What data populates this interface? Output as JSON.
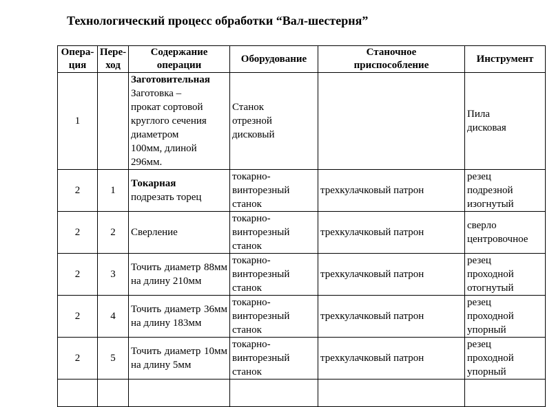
{
  "title": "Технологический процесс обработки “Вал-шестерня”",
  "headers": {
    "operation": "Опера-\nция",
    "step": "Пере-\nход",
    "content": "Содержание\nоперации",
    "equipment": "Оборудование",
    "fixture": "Станочное\nприспособление",
    "tool": "Инструмент"
  },
  "rows": [
    {
      "operation": "1",
      "step": "",
      "content_title": "Заготовительная",
      "content": "Заготовка –\nпрокат сортовой\nкруглого сечения\nдиаметром\n100мм, длиной\n296мм.",
      "equipment": "Станок\nотрезной\nдисковый",
      "fixture": "",
      "tool": "Пила\nдисковая"
    },
    {
      "operation": "2",
      "step": "1",
      "content_title": "Токарная",
      "content": "подрезать торец",
      "equipment": "токарно-\nвинторезный\nстанок",
      "fixture": "трехкулачковый патрон",
      "tool": "резец\nподрезной\nизогнутый"
    },
    {
      "operation": "2",
      "step": "2",
      "content_title": "",
      "content": "Сверление",
      "equipment": "токарно-\nвинторезный\nстанок",
      "fixture": "трехкулачковый патрон",
      "tool": "сверло\nцентровочное"
    },
    {
      "operation": "2",
      "step": "3",
      "content_title": "",
      "content": "Точить диаметр 88мм на длину 210мм",
      "equipment": "токарно-\nвинторезный\nстанок",
      "fixture": "трехкулачковый патрон",
      "tool": "резец\nпроходной\nотогнутый"
    },
    {
      "operation": "2",
      "step": "4",
      "content_title": "",
      "content": "Точить диаметр 36мм на длину 183мм",
      "equipment": "токарно-\nвинторезный\nстанок",
      "fixture": "трехкулачковый патрон",
      "tool": "резец\nпроходной\nупорный"
    },
    {
      "operation": "2",
      "step": "5",
      "content_title": "",
      "content": "Точить диаметр 10мм на длину 5мм",
      "equipment": "токарно-\nвинторезный\nстанок",
      "fixture": "трехкулачковый патрон",
      "tool": "резец\nпроходной\nупорный"
    }
  ]
}
